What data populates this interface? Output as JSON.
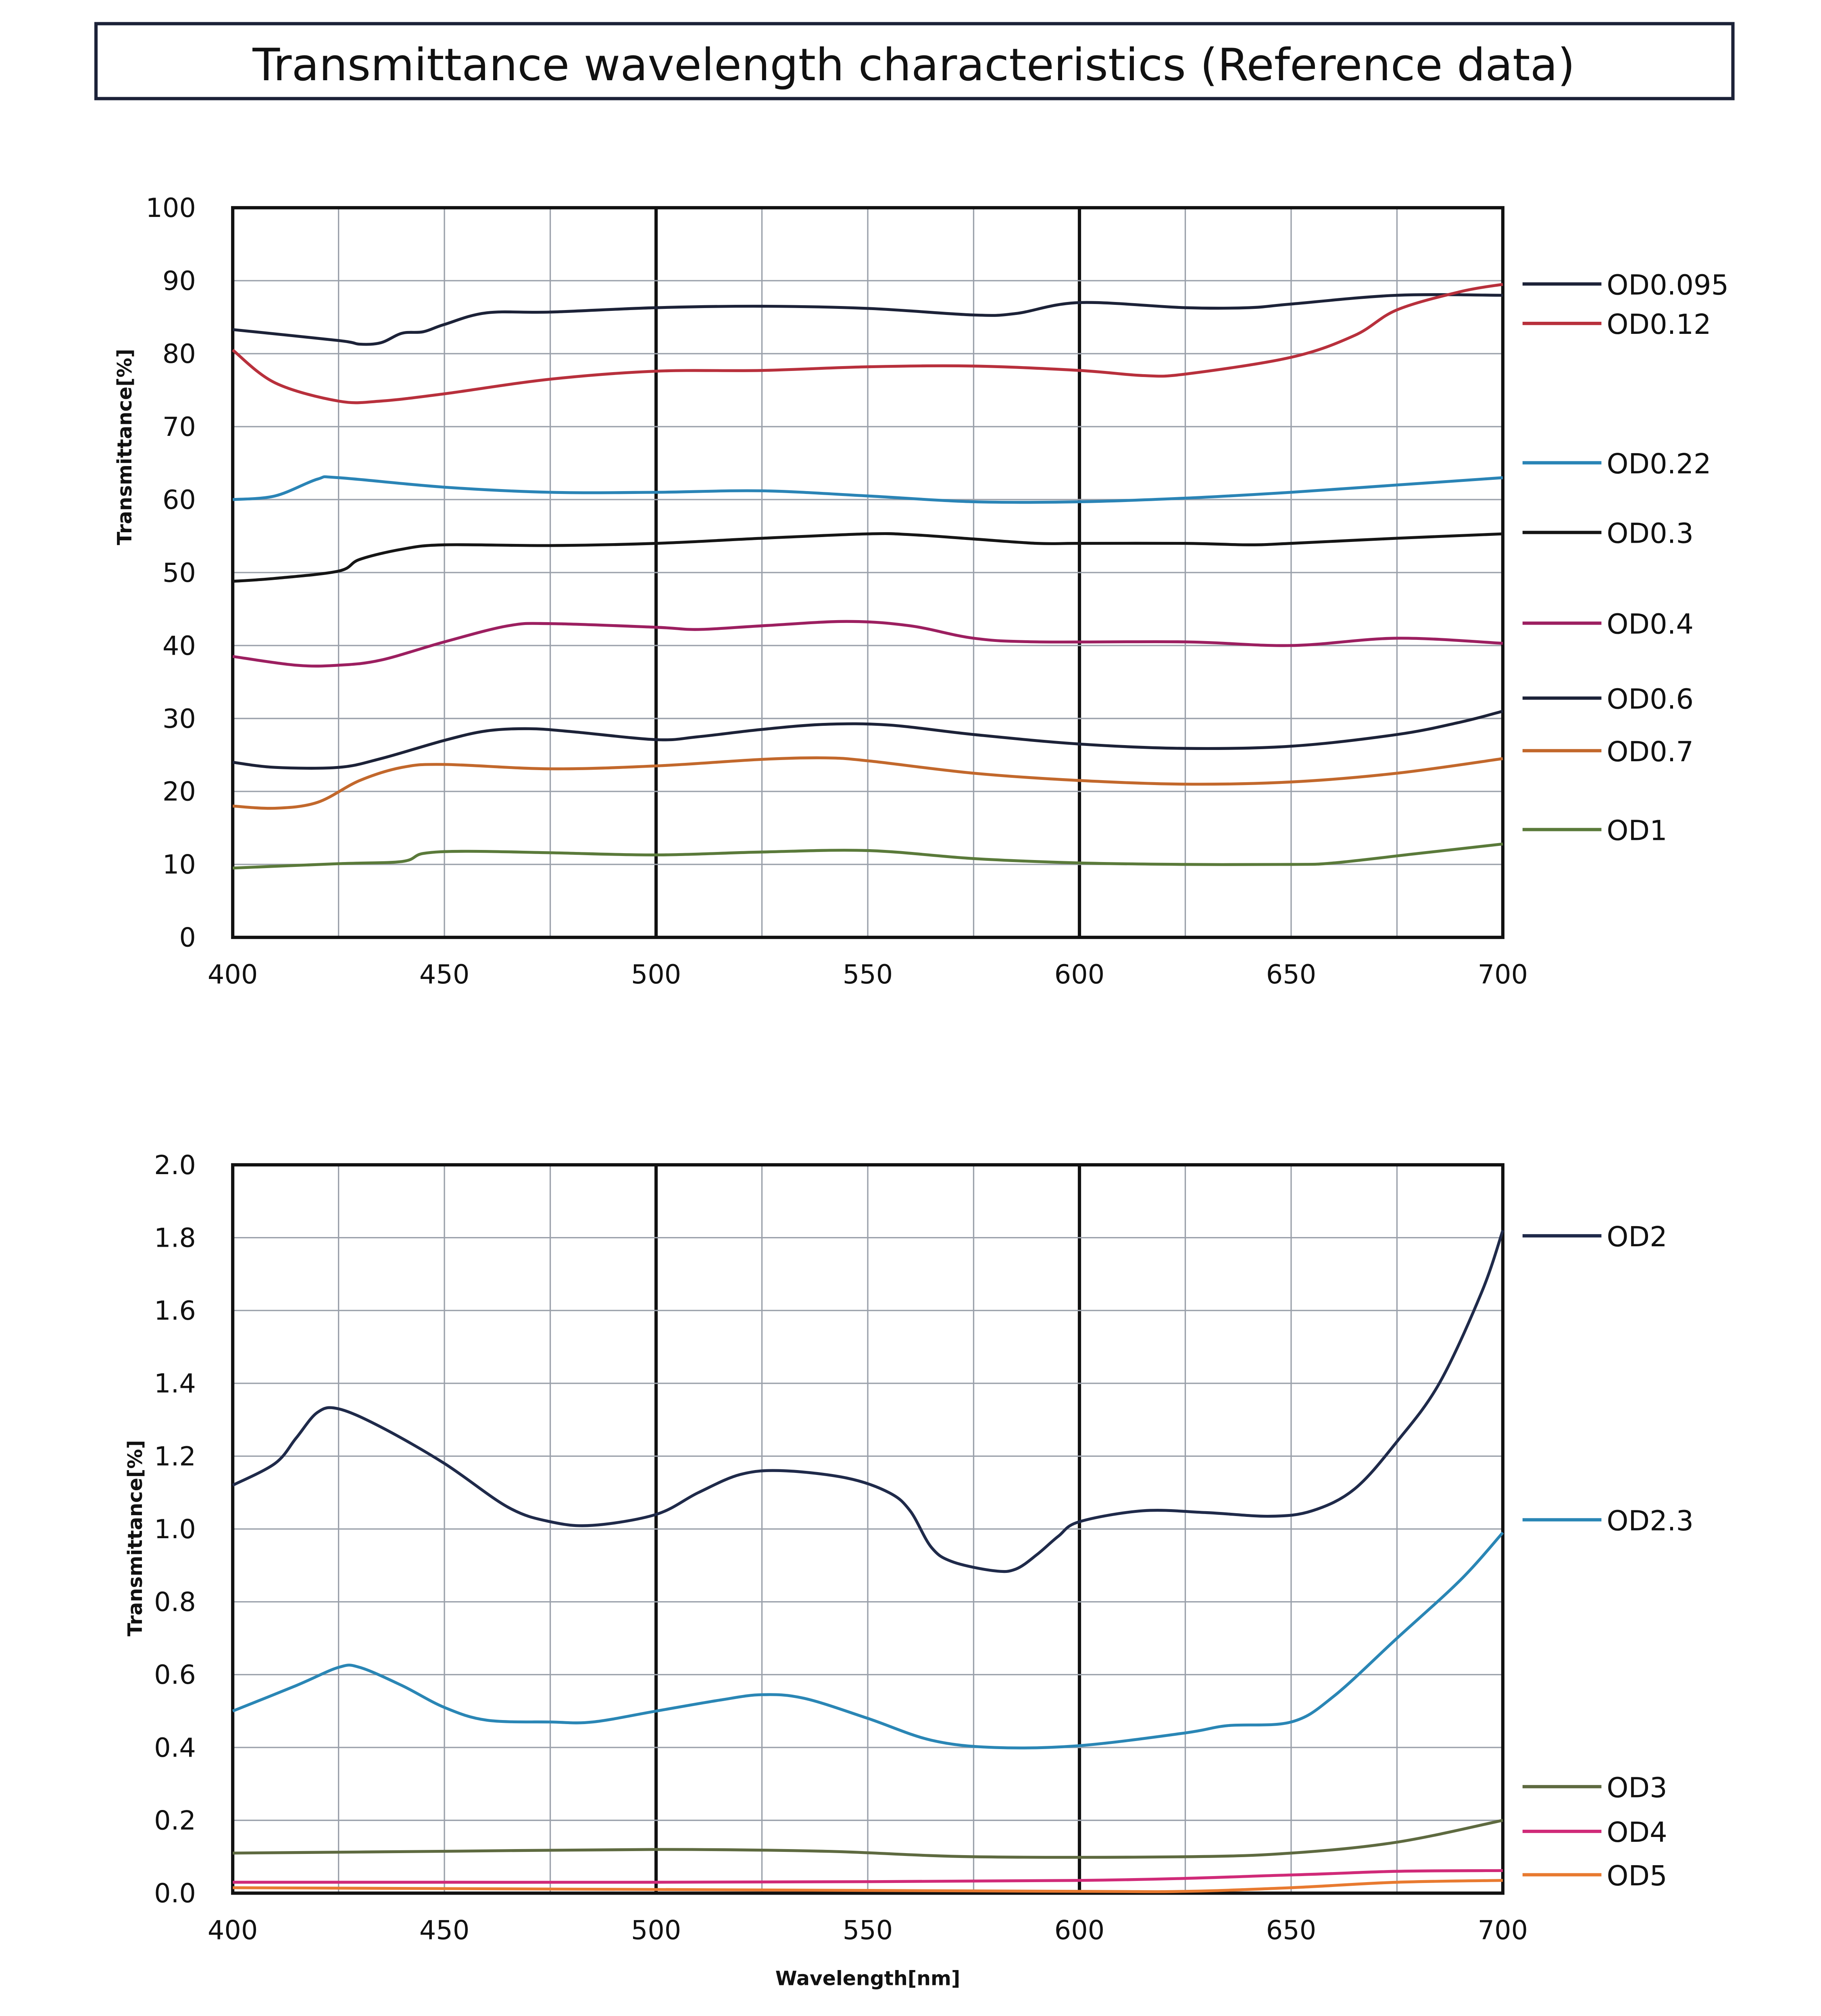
{
  "title": "Transmittance wavelength characteristics (Reference data)",
  "chart_data": [
    {
      "type": "line",
      "title": "",
      "xlabel": "",
      "ylabel": "Transmittance[%]",
      "xlim": [
        400,
        700
      ],
      "ylim": [
        0,
        100
      ],
      "xticks": [
        "400",
        "450",
        "500",
        "550",
        "600",
        "650",
        "700"
      ],
      "yticks": [
        "0",
        "10",
        "20",
        "30",
        "40",
        "50",
        "60",
        "70",
        "80",
        "90",
        "100"
      ],
      "grid": true,
      "legend": "right",
      "series": [
        {
          "name": "OD0.095",
          "color": "#1c2238",
          "points": [
            [
              400,
              83.3
            ],
            [
              425,
              81.8
            ],
            [
              430,
              81.3
            ],
            [
              435,
              81.5
            ],
            [
              440,
              82.8
            ],
            [
              445,
              83
            ],
            [
              450,
              84
            ],
            [
              460,
              85.6
            ],
            [
              475,
              85.7
            ],
            [
              500,
              86.3
            ],
            [
              525,
              86.5
            ],
            [
              550,
              86.2
            ],
            [
              575,
              85.3
            ],
            [
              585,
              85.5
            ],
            [
              600,
              87
            ],
            [
              625,
              86.3
            ],
            [
              640,
              86.3
            ],
            [
              650,
              86.8
            ],
            [
              675,
              88
            ],
            [
              700,
              88
            ]
          ]
        },
        {
          "name": "OD0.12",
          "color": "#b8303c",
          "points": [
            [
              400,
              80.5
            ],
            [
              410,
              76
            ],
            [
              425,
              73.5
            ],
            [
              435,
              73.5
            ],
            [
              450,
              74.5
            ],
            [
              475,
              76.5
            ],
            [
              500,
              77.6
            ],
            [
              525,
              77.7
            ],
            [
              550,
              78.2
            ],
            [
              575,
              78.3
            ],
            [
              600,
              77.7
            ],
            [
              615,
              77
            ],
            [
              625,
              77.2
            ],
            [
              650,
              79.5
            ],
            [
              665,
              82.5
            ],
            [
              675,
              86
            ],
            [
              690,
              88.5
            ],
            [
              700,
              89.5
            ]
          ]
        },
        {
          "name": "OD0.22",
          "color": "#2a84b6",
          "points": [
            [
              400,
              60
            ],
            [
              410,
              60.5
            ],
            [
              420,
              62.8
            ],
            [
              425,
              63
            ],
            [
              450,
              61.7
            ],
            [
              475,
              61
            ],
            [
              500,
              61
            ],
            [
              525,
              61.2
            ],
            [
              550,
              60.5
            ],
            [
              575,
              59.7
            ],
            [
              600,
              59.7
            ],
            [
              625,
              60.2
            ],
            [
              650,
              61
            ],
            [
              675,
              62
            ],
            [
              700,
              63
            ]
          ]
        },
        {
          "name": "OD0.3",
          "color": "#151515",
          "points": [
            [
              400,
              48.8
            ],
            [
              410,
              49.2
            ],
            [
              425,
              50.2
            ],
            [
              430,
              51.8
            ],
            [
              440,
              53.2
            ],
            [
              450,
              53.8
            ],
            [
              475,
              53.7
            ],
            [
              500,
              54
            ],
            [
              525,
              54.7
            ],
            [
              550,
              55.3
            ],
            [
              560,
              55.2
            ],
            [
              575,
              54.6
            ],
            [
              590,
              54
            ],
            [
              600,
              54
            ],
            [
              625,
              54
            ],
            [
              640,
              53.8
            ],
            [
              650,
              54
            ],
            [
              675,
              54.7
            ],
            [
              700,
              55.3
            ]
          ]
        },
        {
          "name": "OD0.4",
          "color": "#9c1f60",
          "points": [
            [
              400,
              38.5
            ],
            [
              415,
              37.3
            ],
            [
              425,
              37.3
            ],
            [
              435,
              38
            ],
            [
              450,
              40.5
            ],
            [
              465,
              42.7
            ],
            [
              475,
              43
            ],
            [
              500,
              42.5
            ],
            [
              510,
              42.2
            ],
            [
              525,
              42.7
            ],
            [
              545,
              43.3
            ],
            [
              560,
              42.7
            ],
            [
              575,
              41
            ],
            [
              590,
              40.5
            ],
            [
              625,
              40.5
            ],
            [
              650,
              40
            ],
            [
              675,
              41
            ],
            [
              700,
              40.3
            ]
          ]
        },
        {
          "name": "OD0.6",
          "color": "#1c2238",
          "points": [
            [
              400,
              24
            ],
            [
              410,
              23.3
            ],
            [
              425,
              23.3
            ],
            [
              435,
              24.5
            ],
            [
              450,
              27
            ],
            [
              460,
              28.3
            ],
            [
              470,
              28.6
            ],
            [
              480,
              28.2
            ],
            [
              500,
              27.1
            ],
            [
              510,
              27.5
            ],
            [
              525,
              28.5
            ],
            [
              540,
              29.2
            ],
            [
              555,
              29.1
            ],
            [
              575,
              27.8
            ],
            [
              600,
              26.5
            ],
            [
              625,
              25.9
            ],
            [
              650,
              26.2
            ],
            [
              675,
              27.8
            ],
            [
              690,
              29.5
            ],
            [
              700,
              31
            ]
          ]
        },
        {
          "name": "OD0.7",
          "color": "#c2682c",
          "points": [
            [
              400,
              18
            ],
            [
              410,
              17.7
            ],
            [
              420,
              18.5
            ],
            [
              430,
              21.5
            ],
            [
              440,
              23.3
            ],
            [
              450,
              23.7
            ],
            [
              475,
              23.1
            ],
            [
              500,
              23.5
            ],
            [
              525,
              24.4
            ],
            [
              540,
              24.6
            ],
            [
              550,
              24.2
            ],
            [
              575,
              22.5
            ],
            [
              600,
              21.5
            ],
            [
              625,
              21
            ],
            [
              650,
              21.3
            ],
            [
              675,
              22.5
            ],
            [
              700,
              24.5
            ]
          ]
        },
        {
          "name": "OD1",
          "color": "#5a7a3a",
          "points": [
            [
              400,
              9.5
            ],
            [
              425,
              10.1
            ],
            [
              440,
              10.4
            ],
            [
              445,
              11.5
            ],
            [
              455,
              11.8
            ],
            [
              475,
              11.6
            ],
            [
              500,
              11.3
            ],
            [
              525,
              11.7
            ],
            [
              550,
              11.9
            ],
            [
              575,
              10.8
            ],
            [
              600,
              10.2
            ],
            [
              625,
              10
            ],
            [
              650,
              10
            ],
            [
              660,
              10.2
            ],
            [
              680,
              11.5
            ],
            [
              700,
              12.8
            ]
          ]
        }
      ]
    },
    {
      "type": "line",
      "title": "",
      "xlabel": "Wavelength[nm]",
      "ylabel": "Transmittance[%]",
      "xlim": [
        400,
        700
      ],
      "ylim": [
        0,
        2.0
      ],
      "xticks": [
        "400",
        "450",
        "500",
        "550",
        "600",
        "650",
        "700"
      ],
      "yticks": [
        "0.0",
        "0.2",
        "0.4",
        "0.6",
        "0.8",
        "1.0",
        "1.2",
        "1.4",
        "1.6",
        "1.8",
        "2.0"
      ],
      "grid": true,
      "legend": "right",
      "series": [
        {
          "name": "OD2",
          "color": "#1f2a4a",
          "points": [
            [
              400,
              1.12
            ],
            [
              410,
              1.18
            ],
            [
              415,
              1.25
            ],
            [
              420,
              1.32
            ],
            [
              425,
              1.33
            ],
            [
              435,
              1.28
            ],
            [
              450,
              1.18
            ],
            [
              465,
              1.06
            ],
            [
              475,
              1.02
            ],
            [
              485,
              1.01
            ],
            [
              500,
              1.04
            ],
            [
              510,
              1.1
            ],
            [
              520,
              1.15
            ],
            [
              530,
              1.16
            ],
            [
              545,
              1.14
            ],
            [
              555,
              1.1
            ],
            [
              560,
              1.05
            ],
            [
              565,
              0.95
            ],
            [
              570,
              0.91
            ],
            [
              580,
              0.885
            ],
            [
              585,
              0.89
            ],
            [
              590,
              0.93
            ],
            [
              595,
              0.98
            ],
            [
              600,
              1.02
            ],
            [
              615,
              1.05
            ],
            [
              630,
              1.045
            ],
            [
              645,
              1.035
            ],
            [
              655,
              1.05
            ],
            [
              665,
              1.11
            ],
            [
              675,
              1.24
            ],
            [
              685,
              1.4
            ],
            [
              695,
              1.65
            ],
            [
              700,
              1.82
            ]
          ]
        },
        {
          "name": "OD2.3",
          "color": "#2a86b5",
          "points": [
            [
              400,
              0.5
            ],
            [
              415,
              0.57
            ],
            [
              425,
              0.62
            ],
            [
              430,
              0.62
            ],
            [
              440,
              0.57
            ],
            [
              450,
              0.51
            ],
            [
              460,
              0.475
            ],
            [
              475,
              0.47
            ],
            [
              485,
              0.47
            ],
            [
              500,
              0.5
            ],
            [
              515,
              0.53
            ],
            [
              525,
              0.545
            ],
            [
              535,
              0.535
            ],
            [
              550,
              0.48
            ],
            [
              565,
              0.42
            ],
            [
              580,
              0.4
            ],
            [
              600,
              0.405
            ],
            [
              625,
              0.44
            ],
            [
              635,
              0.46
            ],
            [
              650,
              0.47
            ],
            [
              660,
              0.54
            ],
            [
              675,
              0.7
            ],
            [
              690,
              0.86
            ],
            [
              700,
              0.99
            ]
          ]
        },
        {
          "name": "OD3",
          "color": "#5e6a40",
          "points": [
            [
              400,
              0.11
            ],
            [
              450,
              0.115
            ],
            [
              500,
              0.12
            ],
            [
              540,
              0.115
            ],
            [
              575,
              0.1
            ],
            [
              625,
              0.1
            ],
            [
              650,
              0.11
            ],
            [
              675,
              0.14
            ],
            [
              700,
              0.2
            ]
          ]
        },
        {
          "name": "OD4",
          "color": "#d02a78",
          "points": [
            [
              400,
              0.03
            ],
            [
              450,
              0.03
            ],
            [
              500,
              0.03
            ],
            [
              600,
              0.035
            ],
            [
              650,
              0.05
            ],
            [
              675,
              0.06
            ],
            [
              700,
              0.062
            ]
          ]
        },
        {
          "name": "OD5",
          "color": "#e87a30",
          "points": [
            [
              400,
              0.015
            ],
            [
              500,
              0.01
            ],
            [
              600,
              0.005
            ],
            [
              625,
              0.005
            ],
            [
              650,
              0.015
            ],
            [
              675,
              0.03
            ],
            [
              700,
              0.035
            ]
          ]
        }
      ]
    }
  ]
}
